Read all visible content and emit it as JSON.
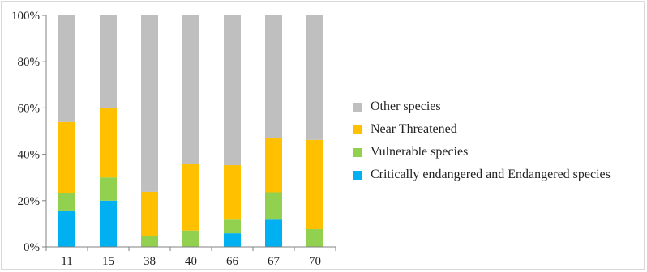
{
  "chart_data": {
    "type": "bar",
    "stacked": true,
    "categories": [
      "11",
      "15",
      "38",
      "40",
      "66",
      "67",
      "70"
    ],
    "series": [
      {
        "name": "Critically endangered and Endangered species",
        "color": "#00b0f0",
        "values": [
          15.4,
          20.0,
          0,
          0,
          5.9,
          11.8,
          0
        ]
      },
      {
        "name": "Vulnerable species",
        "color": "#92d050",
        "values": [
          7.7,
          10.0,
          4.8,
          7.1,
          5.9,
          11.8,
          7.7
        ]
      },
      {
        "name": "Near Threatened",
        "color": "#ffc000",
        "values": [
          30.8,
          30.0,
          19.0,
          28.6,
          23.5,
          23.5,
          38.5
        ]
      },
      {
        "name": "Other species",
        "color": "#bfbfbf",
        "values": [
          46.1,
          40.0,
          76.2,
          64.3,
          64.7,
          52.9,
          53.8
        ]
      }
    ],
    "yticks": [
      "0%",
      "20%",
      "40%",
      "60%",
      "80%",
      "100%"
    ],
    "ylim": [
      0,
      100
    ],
    "legend_position": "right",
    "grid": false
  },
  "legend": [
    {
      "label": "Other species",
      "color": "#bfbfbf"
    },
    {
      "label": "Near Threatened",
      "color": "#ffc000"
    },
    {
      "label": "Vulnerable species",
      "color": "#92d050"
    },
    {
      "label": "Critically endangered and Endangered species",
      "color": "#00b0f0"
    }
  ]
}
